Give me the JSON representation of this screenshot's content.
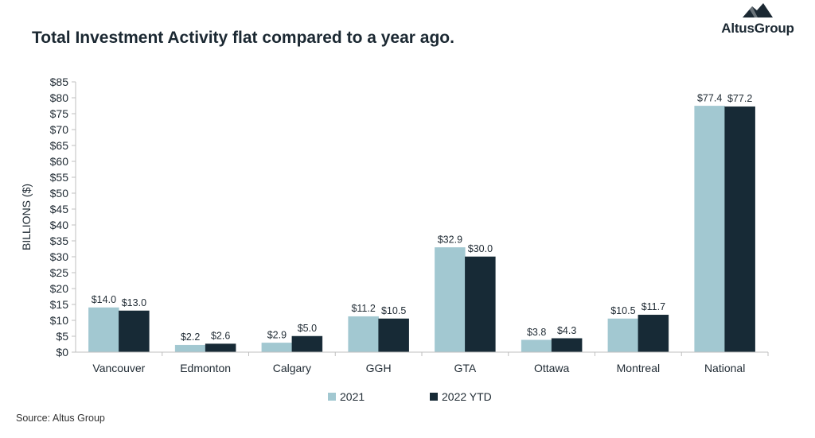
{
  "title": "Total Investment Activity flat compared to a year ago.",
  "logo_text": "AltusGroup",
  "source": "Source:  Altus Group",
  "colors": {
    "2021": "#a2c8d1",
    "2022 YTD": "#172a36",
    "axis": "#bfbfbf"
  },
  "chart_data": {
    "type": "bar",
    "categories": [
      "Vancouver",
      "Edmonton",
      "Calgary",
      "GGH",
      "GTA",
      "Ottawa",
      "Montreal",
      "National"
    ],
    "series": [
      {
        "name": "2021",
        "values": [
          14.0,
          2.2,
          2.9,
          11.2,
          32.9,
          3.8,
          10.5,
          77.4
        ],
        "labels": [
          "$14.0",
          "$2.2",
          "$2.9",
          "$11.2",
          "$32.9",
          "$3.8",
          "$10.5",
          "$77.4"
        ]
      },
      {
        "name": "2022 YTD",
        "values": [
          13.0,
          2.6,
          5.0,
          10.5,
          30.0,
          4.3,
          11.7,
          77.2
        ],
        "labels": [
          "$13.0",
          "$2.6",
          "$5.0",
          "$10.5",
          "$30.0",
          "$4.3",
          "$11.7",
          "$77.2"
        ]
      }
    ],
    "ylabel": "BILLIONS ($)",
    "ylim": [
      0,
      85
    ],
    "yticks": [
      0,
      5,
      10,
      15,
      20,
      25,
      30,
      35,
      40,
      45,
      50,
      55,
      60,
      65,
      70,
      75,
      80,
      85
    ],
    "ytick_labels": [
      "$0",
      "$5",
      "$10",
      "$15",
      "$20",
      "$25",
      "$30",
      "$35",
      "$40",
      "$45",
      "$50",
      "$55",
      "$60",
      "$65",
      "$70",
      "$75",
      "$80",
      "$85"
    ],
    "grid": false,
    "legend": "bottom"
  }
}
